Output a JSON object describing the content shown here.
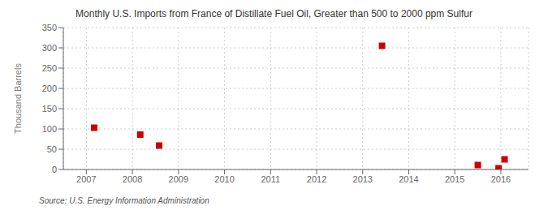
{
  "chart_data": {
    "type": "scatter",
    "title": "Monthly U.S. Imports from France of Distillate Fuel Oil, Greater than 500 to 2000 ppm Sulfur",
    "y_label": "Thousand Barrels",
    "annotations": [
      "Source: U.S. Energy Information Administration"
    ],
    "x": [
      2007.17,
      2008.17,
      2008.58,
      2013.42,
      2015.5,
      2015.95,
      2016.08
    ],
    "values": [
      103,
      86,
      59,
      305,
      11,
      3,
      25
    ],
    "color": "#cc0000",
    "marker": "square",
    "xlim": [
      2006.5,
      2016.6
    ],
    "ylim": [
      0,
      350
    ],
    "xticks": [
      2007,
      2008,
      2009,
      2010,
      2011,
      2012,
      2013,
      2014,
      2015,
      2016
    ],
    "yticks": [
      0,
      50,
      100,
      150,
      200,
      250,
      300,
      350
    ],
    "grid": true
  }
}
